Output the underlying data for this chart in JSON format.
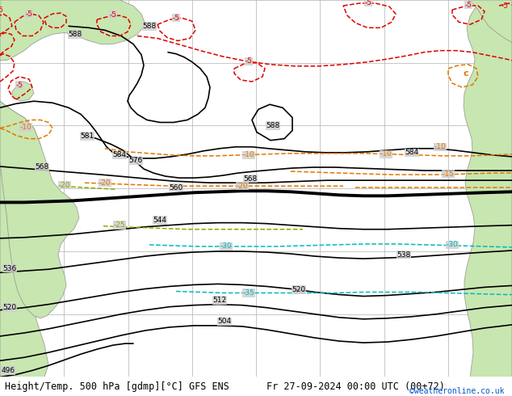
{
  "title_left": "Height/Temp. 500 hPa [gdmp][°C] GFS ENS",
  "title_right": "Fr 27-09-2024 00:00 UTC (00+72)",
  "watermark": "©weatheronline.co.uk",
  "background_land": "#c8e6b0",
  "background_sea": "#d0d0d0",
  "grid_color": "#b0b0b0",
  "fig_width": 6.34,
  "fig_height": 4.9,
  "dpi": 100,
  "watermark_color": "#0055cc",
  "title_fontsize": 8.5
}
